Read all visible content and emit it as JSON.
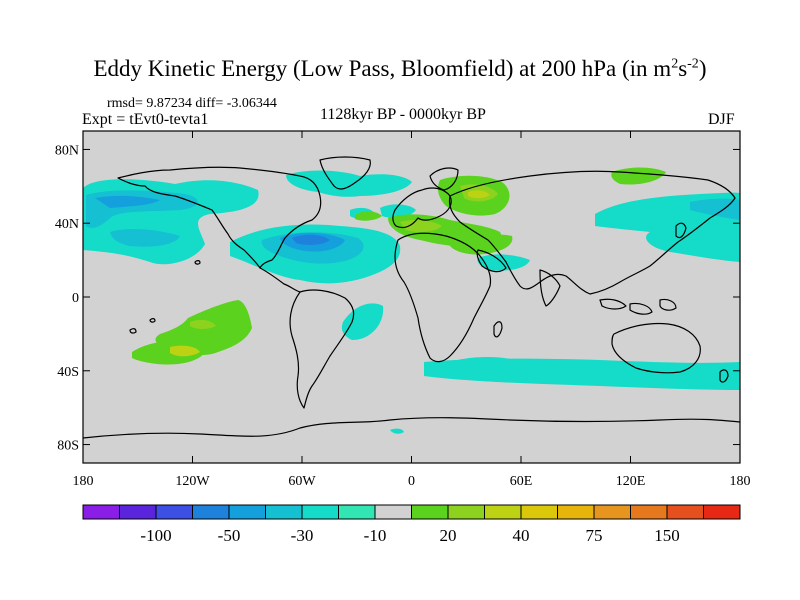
{
  "title_main": "Eddy Kinetic Energy (Low Pass, Bloomfield) at 200 hPa (in m",
  "title_sup1": "2",
  "title_mid": "s",
  "title_sup2": "-2",
  "title_end": ")",
  "stats": "rmsd= 9.87234 diff= -3.06344",
  "experiment": "Expt = tEvt0-tevta1",
  "period": "1128kyr BP - 0000kyr BP",
  "season": "DJF",
  "lat_labels": [
    "80N",
    "40N",
    "0",
    "40S",
    "80S"
  ],
  "lon_labels": [
    "180",
    "120W",
    "60W",
    "0",
    "60E",
    "120E",
    "180"
  ],
  "colorbar": {
    "colors": [
      "#8a1ee6",
      "#5a23dc",
      "#3c50e6",
      "#1e82dc",
      "#14a0dc",
      "#14c0d2",
      "#14dcc8",
      "#32e6b4",
      "#d2d2d2",
      "#5ad21e",
      "#8cd21e",
      "#bed214",
      "#dcc80a",
      "#e6b40a",
      "#e6961e",
      "#e6781e",
      "#e6501e",
      "#e62814"
    ],
    "labels": [
      "-100",
      "-50",
      "-30",
      "-10",
      "20",
      "40",
      "75",
      "150"
    ]
  },
  "map": {
    "background": "#d2d2d2"
  }
}
